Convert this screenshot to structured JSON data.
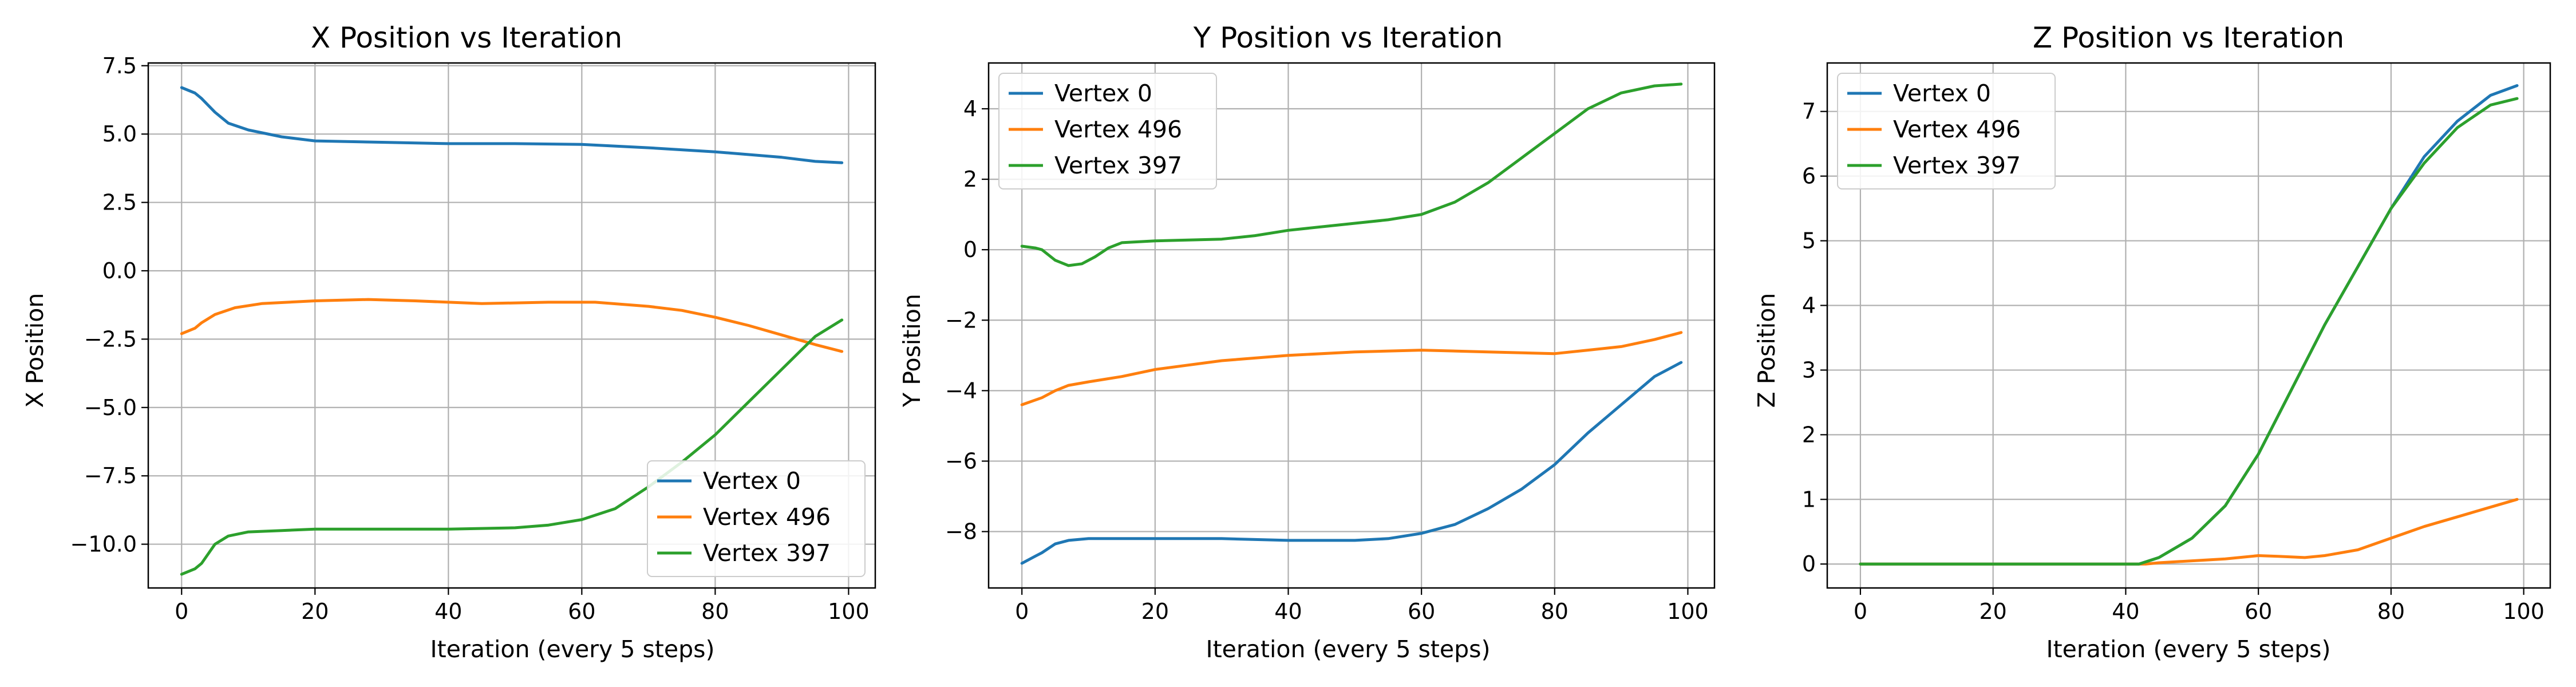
{
  "colors": {
    "vertex_0": "#1f77b4",
    "vertex_496": "#ff7f0e",
    "vertex_397": "#2ca02c",
    "grid": "#b0b0b0",
    "axes": "#000000"
  },
  "chart_data": [
    {
      "type": "line",
      "title": "X Position vs Iteration",
      "xlabel": "Iteration (every 5 steps)",
      "ylabel": "X Position",
      "xlim": [
        -5,
        104
      ],
      "ylim": [
        -11.6,
        7.6
      ],
      "xticks": [
        0,
        20,
        40,
        60,
        80,
        100
      ],
      "yticks": [
        -10.0,
        -7.5,
        -5.0,
        -2.5,
        0.0,
        2.5,
        5.0,
        7.5
      ],
      "ytick_labels": [
        "−10.0",
        "−7.5",
        "−5.0",
        "−2.5",
        "0.0",
        "2.5",
        "5.0",
        "7.5"
      ],
      "grid": true,
      "legend": "lower-right",
      "series": [
        {
          "name": "Vertex 0",
          "color": "#1f77b4",
          "x": [
            0,
            2,
            3,
            5,
            7,
            10,
            15,
            20,
            30,
            40,
            50,
            60,
            70,
            80,
            90,
            95,
            99
          ],
          "y": [
            6.7,
            6.5,
            6.3,
            5.8,
            5.4,
            5.15,
            4.9,
            4.75,
            4.7,
            4.65,
            4.65,
            4.62,
            4.5,
            4.35,
            4.15,
            4.0,
            3.95
          ]
        },
        {
          "name": "Vertex 496",
          "color": "#ff7f0e",
          "x": [
            0,
            2,
            3,
            5,
            8,
            12,
            20,
            28,
            35,
            45,
            55,
            62,
            70,
            75,
            80,
            85,
            90,
            95,
            99
          ],
          "y": [
            -2.3,
            -2.1,
            -1.9,
            -1.6,
            -1.35,
            -1.2,
            -1.1,
            -1.05,
            -1.1,
            -1.2,
            -1.15,
            -1.15,
            -1.3,
            -1.45,
            -1.7,
            -2.0,
            -2.35,
            -2.7,
            -2.95
          ]
        },
        {
          "name": "Vertex 397",
          "color": "#2ca02c",
          "x": [
            0,
            2,
            3,
            5,
            7,
            10,
            15,
            20,
            30,
            40,
            50,
            55,
            60,
            65,
            70,
            75,
            80,
            85,
            90,
            95,
            99
          ],
          "y": [
            -11.1,
            -10.9,
            -10.7,
            -10.0,
            -9.7,
            -9.55,
            -9.5,
            -9.45,
            -9.45,
            -9.45,
            -9.4,
            -9.3,
            -9.1,
            -8.7,
            -7.9,
            -7.0,
            -6.0,
            -4.8,
            -3.6,
            -2.4,
            -1.8
          ]
        }
      ]
    },
    {
      "type": "line",
      "title": "Y Position vs Iteration",
      "xlabel": "Iteration (every 5 steps)",
      "ylabel": "Y Position",
      "xlim": [
        -5,
        104
      ],
      "ylim": [
        -9.6,
        5.3
      ],
      "xticks": [
        0,
        20,
        40,
        60,
        80,
        100
      ],
      "yticks": [
        -8,
        -6,
        -4,
        -2,
        0,
        2,
        4
      ],
      "ytick_labels": [
        "−8",
        "−6",
        "−4",
        "−2",
        "0",
        "2",
        "4"
      ],
      "grid": true,
      "legend": "upper-left",
      "series": [
        {
          "name": "Vertex 0",
          "color": "#1f77b4",
          "x": [
            0,
            2,
            3,
            5,
            7,
            10,
            15,
            20,
            30,
            40,
            50,
            55,
            60,
            65,
            70,
            75,
            80,
            85,
            90,
            95,
            99
          ],
          "y": [
            -8.9,
            -8.7,
            -8.6,
            -8.35,
            -8.25,
            -8.2,
            -8.2,
            -8.2,
            -8.2,
            -8.25,
            -8.25,
            -8.2,
            -8.05,
            -7.8,
            -7.35,
            -6.8,
            -6.1,
            -5.2,
            -4.4,
            -3.6,
            -3.2
          ]
        },
        {
          "name": "Vertex 496",
          "color": "#ff7f0e",
          "x": [
            0,
            3,
            5,
            7,
            10,
            15,
            20,
            30,
            40,
            50,
            60,
            70,
            80,
            85,
            90,
            95,
            99
          ],
          "y": [
            -4.4,
            -4.2,
            -4.0,
            -3.85,
            -3.75,
            -3.6,
            -3.4,
            -3.15,
            -3.0,
            -2.9,
            -2.85,
            -2.9,
            -2.95,
            -2.85,
            -2.75,
            -2.55,
            -2.35
          ]
        },
        {
          "name": "Vertex 397",
          "color": "#2ca02c",
          "x": [
            0,
            2,
            3,
            5,
            7,
            9,
            11,
            13,
            15,
            20,
            30,
            35,
            40,
            50,
            55,
            60,
            65,
            70,
            75,
            80,
            85,
            90,
            95,
            99
          ],
          "y": [
            0.1,
            0.05,
            0.0,
            -0.3,
            -0.45,
            -0.4,
            -0.2,
            0.05,
            0.2,
            0.25,
            0.3,
            0.4,
            0.55,
            0.75,
            0.85,
            1.0,
            1.35,
            1.9,
            2.6,
            3.3,
            4.0,
            4.45,
            4.65,
            4.7
          ]
        }
      ]
    },
    {
      "type": "line",
      "title": "Z Position vs Iteration",
      "xlabel": "Iteration (every 5 steps)",
      "ylabel": "Z Position",
      "xlim": [
        -5,
        104
      ],
      "ylim": [
        -0.37,
        7.75
      ],
      "xticks": [
        0,
        20,
        40,
        60,
        80,
        100
      ],
      "yticks": [
        0,
        1,
        2,
        3,
        4,
        5,
        6,
        7
      ],
      "ytick_labels": [
        "0",
        "1",
        "2",
        "3",
        "4",
        "5",
        "6",
        "7"
      ],
      "grid": true,
      "legend": "upper-left",
      "series": [
        {
          "name": "Vertex 0",
          "color": "#1f77b4",
          "x": [
            0,
            42,
            45,
            50,
            55,
            60,
            65,
            70,
            75,
            80,
            85,
            90,
            95,
            99
          ],
          "y": [
            0.0,
            0.0,
            0.1,
            0.4,
            0.9,
            1.7,
            2.7,
            3.7,
            4.6,
            5.5,
            6.3,
            6.85,
            7.25,
            7.4
          ]
        },
        {
          "name": "Vertex 496",
          "color": "#ff7f0e",
          "x": [
            0,
            43,
            45,
            50,
            55,
            60,
            63,
            67,
            70,
            75,
            80,
            85,
            90,
            95,
            99
          ],
          "y": [
            0.0,
            0.0,
            0.02,
            0.05,
            0.08,
            0.13,
            0.12,
            0.1,
            0.13,
            0.22,
            0.4,
            0.58,
            0.73,
            0.88,
            1.0
          ]
        },
        {
          "name": "Vertex 397",
          "color": "#2ca02c",
          "x": [
            0,
            42,
            45,
            50,
            55,
            60,
            65,
            70,
            75,
            80,
            85,
            90,
            95,
            99
          ],
          "y": [
            0.0,
            0.0,
            0.1,
            0.4,
            0.9,
            1.7,
            2.7,
            3.7,
            4.6,
            5.5,
            6.2,
            6.75,
            7.1,
            7.2
          ]
        }
      ]
    }
  ]
}
